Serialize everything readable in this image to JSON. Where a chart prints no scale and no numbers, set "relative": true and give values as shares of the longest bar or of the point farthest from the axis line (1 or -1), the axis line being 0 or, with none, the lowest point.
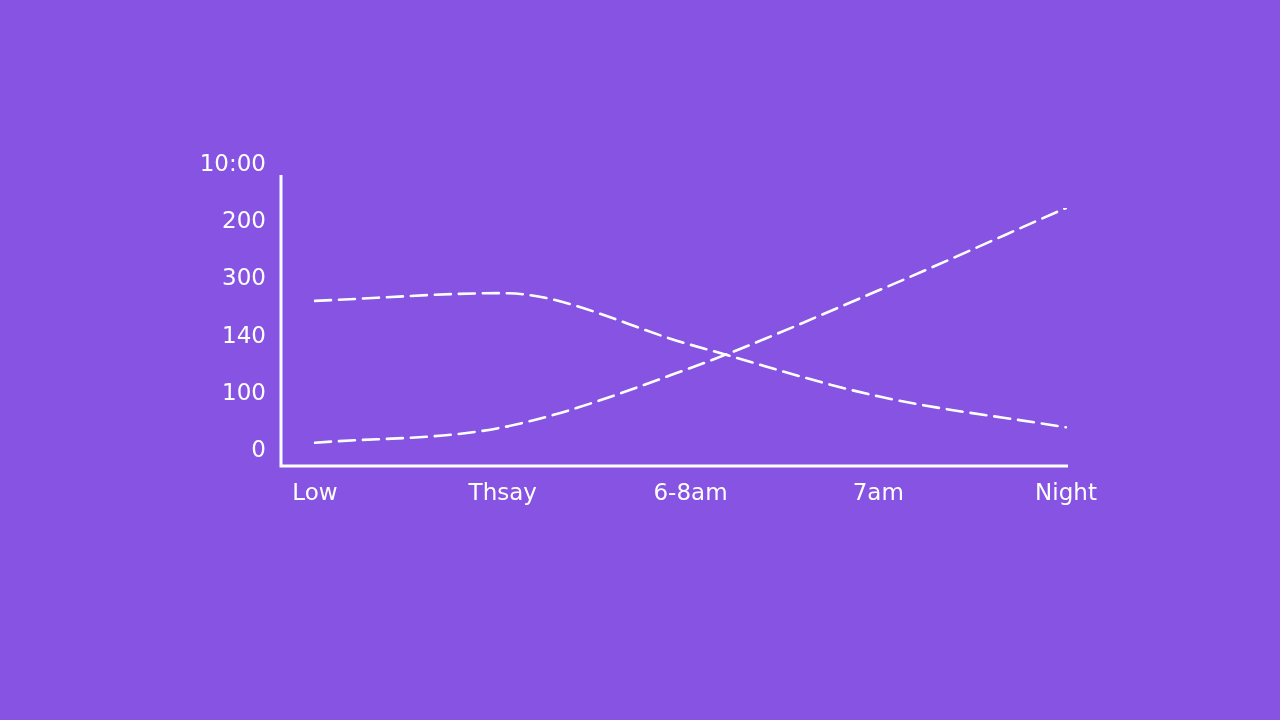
{
  "chart_data": {
    "type": "line",
    "categories": [
      "Low",
      "Thsay",
      "6-8am",
      "7am",
      "Night"
    ],
    "relative": true,
    "series": [
      {
        "color": "#ffffff",
        "values": [
          0.64,
          0.67,
          0.47,
          0.27,
          0.15
        ]
      },
      {
        "color": "#ffffff",
        "values": [
          0.09,
          0.15,
          0.38,
          0.68,
          1
        ]
      }
    ],
    "annotations": [
      "10:00",
      "200",
      "300",
      "140",
      "100",
      "0"
    ],
    "line_style": "dashed",
    "marker": "none"
  }
}
